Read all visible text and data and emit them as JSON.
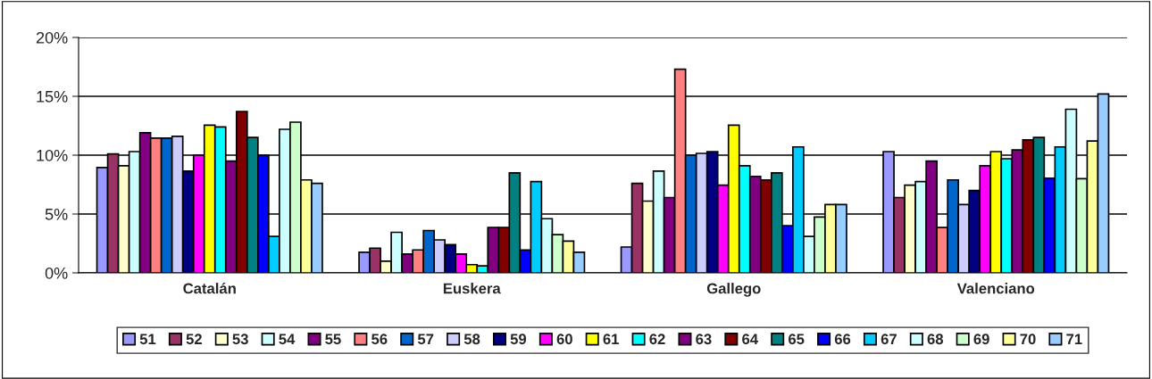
{
  "chart_data": {
    "type": "bar",
    "categories": [
      "Catalán",
      "Euskera",
      "Gallego",
      "Valenciano"
    ],
    "ylim": [
      0,
      20
    ],
    "yticks": [
      {
        "value": 0,
        "label": "0%"
      },
      {
        "value": 5,
        "label": "5%"
      },
      {
        "value": 10,
        "label": "10%"
      },
      {
        "value": 15,
        "label": "15%"
      },
      {
        "value": 20,
        "label": "20%"
      }
    ],
    "grid": "y",
    "legend": "bottom",
    "series": [
      {
        "name": "51",
        "color": "#9999ff",
        "values": [
          8.95,
          1.75,
          2.2,
          10.3
        ]
      },
      {
        "name": "52",
        "color": "#993366",
        "values": [
          10.1,
          2.1,
          7.6,
          6.4
        ]
      },
      {
        "name": "53",
        "color": "#ffffcc",
        "values": [
          9.1,
          1.0,
          6.1,
          7.45
        ]
      },
      {
        "name": "54",
        "color": "#ccffff",
        "values": [
          10.3,
          3.45,
          8.65,
          7.75
        ]
      },
      {
        "name": "55",
        "color": "#800080",
        "values": [
          11.9,
          1.6,
          6.4,
          9.5
        ]
      },
      {
        "name": "56",
        "color": "#ff8080",
        "values": [
          11.45,
          1.95,
          17.3,
          3.85
        ]
      },
      {
        "name": "57",
        "color": "#0066cc",
        "values": [
          11.45,
          3.6,
          10.0,
          7.9
        ]
      },
      {
        "name": "58",
        "color": "#ccccff",
        "values": [
          11.6,
          2.8,
          10.15,
          5.8
        ]
      },
      {
        "name": "59",
        "color": "#000080",
        "values": [
          8.65,
          2.4,
          10.3,
          7.0
        ]
      },
      {
        "name": "60",
        "color": "#ff00ff",
        "values": [
          10.0,
          1.6,
          7.45,
          9.1
        ]
      },
      {
        "name": "61",
        "color": "#ffff00",
        "values": [
          12.55,
          0.7,
          12.55,
          10.3
        ]
      },
      {
        "name": "62",
        "color": "#00ffff",
        "values": [
          12.4,
          0.6,
          9.1,
          9.7
        ]
      },
      {
        "name": "63",
        "color": "#800080",
        "values": [
          9.5,
          3.85,
          8.2,
          10.45
        ]
      },
      {
        "name": "64",
        "color": "#800000",
        "values": [
          13.7,
          3.85,
          7.9,
          11.3
        ]
      },
      {
        "name": "65",
        "color": "#008080",
        "values": [
          11.5,
          8.5,
          8.5,
          11.5
        ]
      },
      {
        "name": "66",
        "color": "#0000ff",
        "values": [
          10.0,
          1.95,
          4.0,
          8.05
        ]
      },
      {
        "name": "67",
        "color": "#00ccff",
        "values": [
          3.1,
          7.75,
          10.7,
          10.7
        ]
      },
      {
        "name": "68",
        "color": "#ccffff",
        "values": [
          12.2,
          4.6,
          3.1,
          13.9
        ]
      },
      {
        "name": "69",
        "color": "#ccffcc",
        "values": [
          12.8,
          3.25,
          4.75,
          8.0
        ]
      },
      {
        "name": "70",
        "color": "#ffff99",
        "values": [
          7.9,
          2.7,
          5.8,
          11.2
        ]
      },
      {
        "name": "71",
        "color": "#99ccff",
        "values": [
          7.6,
          1.75,
          5.8,
          15.2
        ]
      }
    ]
  }
}
